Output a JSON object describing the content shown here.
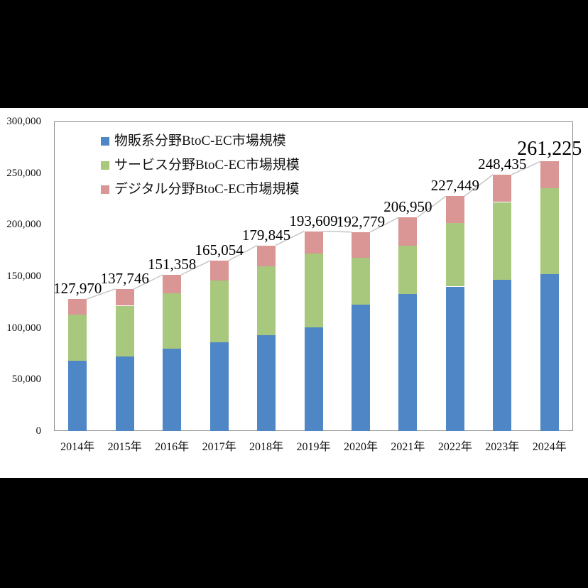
{
  "chart_data": {
    "type": "bar",
    "stacked": true,
    "title": "",
    "categories": [
      "2014年",
      "2015年",
      "2016年",
      "2017年",
      "2018年",
      "2019年",
      "2020年",
      "2021年",
      "2022年",
      "2023年",
      "2024年"
    ],
    "series": [
      {
        "name": "物販系分野BtoC-EC市場規模",
        "color": "#4E86C6",
        "values": [
          68043,
          72398,
          80043,
          86008,
          92992,
          100515,
          122333,
          132865,
          139997,
          146760,
          152254
        ]
      },
      {
        "name": "サービス分野BtoC-EC市場規模",
        "color": "#A8C87D",
        "values": [
          44816,
          49014,
          53532,
          59568,
          66471,
          71672,
          45832,
          46424,
          61477,
          75169,
          83293
        ]
      },
      {
        "name": "デジタル分野BtoC-EC市場規模",
        "color": "#D99694",
        "values": [
          15111,
          16334,
          17782,
          19478,
          20382,
          21422,
          24614,
          27661,
          25974,
          26506,
          25678
        ]
      }
    ],
    "total_labels": [
      "127,970",
      "137,746",
      "151,358",
      "165,054",
      "179,845",
      "193,609",
      "192,779",
      "206,950",
      "227,449",
      "248,435",
      "261,225"
    ],
    "emphasized_total_index": 10,
    "ylim": [
      0,
      300000
    ],
    "yticks": [
      {
        "label": "0",
        "value": 0
      },
      {
        "label": "50,000",
        "value": 50000
      },
      {
        "label": "100,000",
        "value": 100000
      },
      {
        "label": "150,000",
        "value": 150000
      },
      {
        "label": "200,000",
        "value": 200000
      },
      {
        "label": "250,000",
        "value": 250000
      },
      {
        "label": "300,000",
        "value": 300000
      }
    ],
    "xlabel": "",
    "ylabel": "",
    "grid": false,
    "legend_position": "top-left-inside",
    "connector_line_color": "#C6C6C6"
  },
  "colors": {
    "letterbox": "#000000",
    "canvas": "#FFFFFF",
    "plot_border": "#8C8C8C",
    "text": "#111111"
  }
}
